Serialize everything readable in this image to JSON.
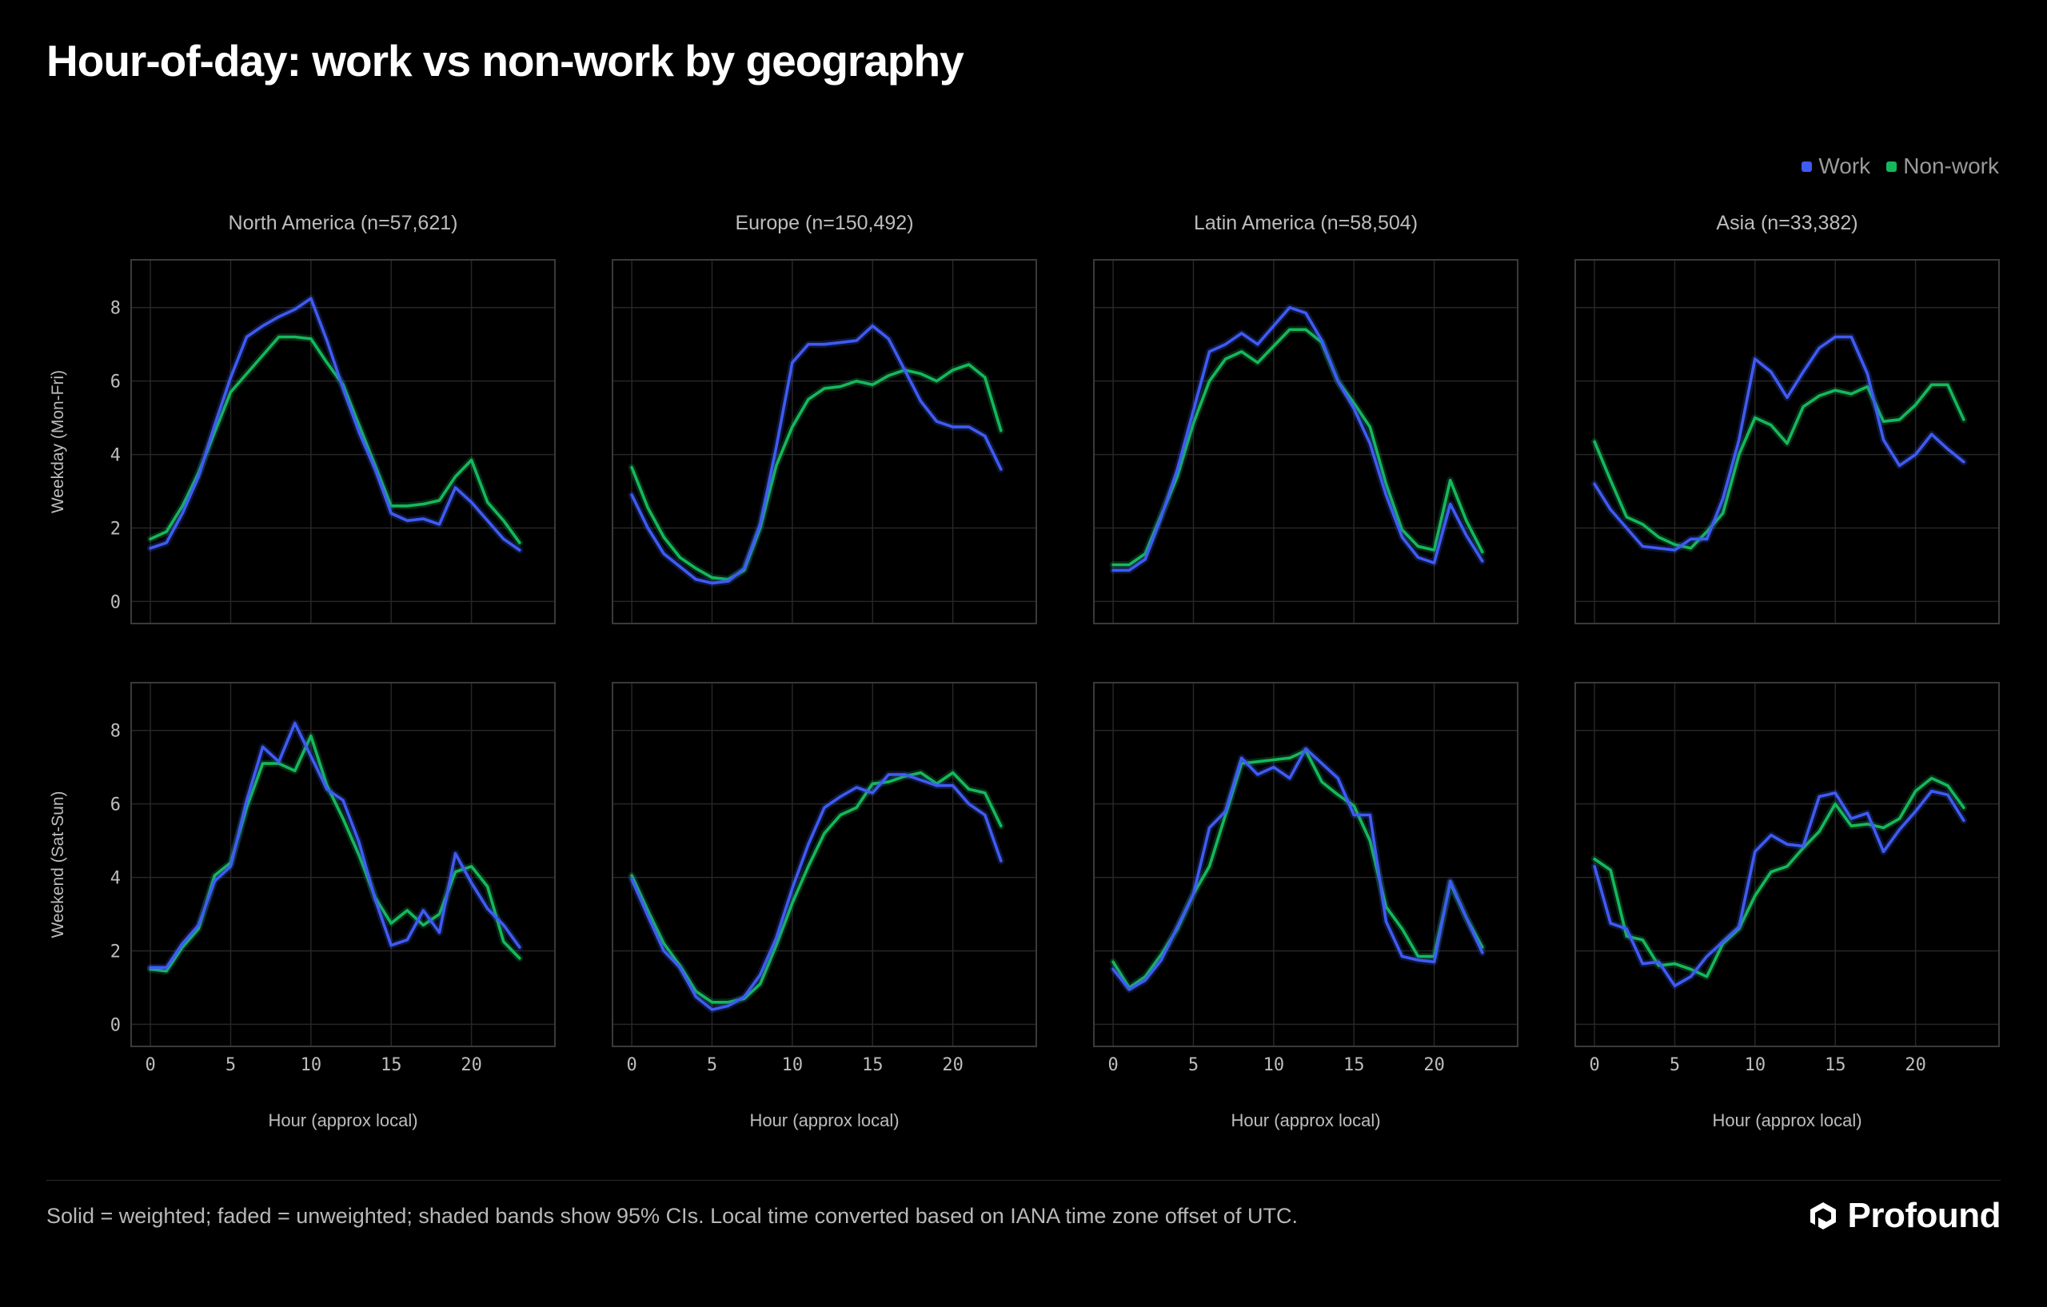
{
  "title": "Hour-of-day: work vs non-work by geography",
  "legend": {
    "items": [
      {
        "label": "Work",
        "color": "#3f5bf2"
      },
      {
        "label": "Non-work",
        "color": "#15b85c"
      }
    ]
  },
  "footer": {
    "note": "Solid = weighted; faded = unweighted; shaded bands show 95% CIs. Local time converted based on IANA time zone offset of UTC."
  },
  "brand": {
    "name": "Profound",
    "icon": "profound-logo-icon"
  },
  "colors": {
    "work": "#3f5bf2",
    "nonwork": "#15b85c",
    "grid": "#262626",
    "frame": "#3a3a3a"
  },
  "chart_data": {
    "type": "line",
    "layout": "facet-grid",
    "columns": [
      "North America (n=57,621)",
      "Europe (n=150,492)",
      "Latin America (n=58,504)",
      "Asia (n=33,382)"
    ],
    "rows": [
      "Weekday (Mon-Fri)",
      "Weekend (Sat-Sun)"
    ],
    "xlabel": "Hour (approx local)",
    "x": [
      0,
      1,
      2,
      3,
      4,
      5,
      6,
      7,
      8,
      9,
      10,
      11,
      12,
      13,
      14,
      15,
      16,
      17,
      18,
      19,
      20,
      21,
      22,
      23
    ],
    "xticks": [
      0,
      5,
      10,
      15,
      20
    ],
    "xlim": [
      -1.2,
      25.2
    ],
    "ylim": [
      -0.6,
      9.3
    ],
    "yticks": [
      0,
      2,
      4,
      6,
      8
    ],
    "grid": true,
    "legend_position": "top-right",
    "panels": [
      {
        "row": 0,
        "col": 0,
        "series": [
          {
            "name": "Work",
            "values": [
              1.45,
              1.6,
              2.4,
              3.4,
              4.8,
              6.1,
              7.2,
              7.5,
              7.75,
              7.95,
              8.25,
              7.1,
              5.8,
              4.6,
              3.6,
              2.4,
              2.2,
              2.25,
              2.1,
              3.1,
              2.7,
              2.2,
              1.7,
              1.4
            ]
          },
          {
            "name": "Non-work",
            "values": [
              1.7,
              1.9,
              2.6,
              3.5,
              4.6,
              5.7,
              6.2,
              6.7,
              7.2,
              7.2,
              7.15,
              6.5,
              5.9,
              4.8,
              3.7,
              2.6,
              2.6,
              2.65,
              2.75,
              3.4,
              3.85,
              2.7,
              2.2,
              1.6
            ]
          }
        ]
      },
      {
        "row": 0,
        "col": 1,
        "series": [
          {
            "name": "Work",
            "values": [
              2.9,
              2.0,
              1.3,
              0.95,
              0.6,
              0.5,
              0.55,
              0.9,
              2.1,
              4.2,
              6.5,
              7.0,
              7.0,
              7.05,
              7.1,
              7.5,
              7.15,
              6.3,
              5.45,
              4.9,
              4.75,
              4.75,
              4.5,
              3.6
            ]
          },
          {
            "name": "Non-work",
            "values": [
              3.65,
              2.55,
              1.75,
              1.2,
              0.9,
              0.65,
              0.6,
              0.85,
              2.0,
              3.7,
              4.75,
              5.5,
              5.8,
              5.85,
              6.0,
              5.9,
              6.15,
              6.3,
              6.2,
              6.0,
              6.3,
              6.45,
              6.1,
              4.65
            ]
          }
        ]
      },
      {
        "row": 0,
        "col": 2,
        "series": [
          {
            "name": "Work",
            "values": [
              0.85,
              0.85,
              1.15,
              2.3,
              3.6,
              5.2,
              6.8,
              7.0,
              7.3,
              7.0,
              7.5,
              8.0,
              7.85,
              7.1,
              6.0,
              5.25,
              4.3,
              2.9,
              1.75,
              1.2,
              1.05,
              2.65,
              1.8,
              1.1
            ]
          },
          {
            "name": "Non-work",
            "values": [
              1.0,
              1.0,
              1.3,
              2.35,
              3.4,
              4.85,
              6.0,
              6.6,
              6.8,
              6.5,
              6.95,
              7.4,
              7.4,
              7.05,
              6.0,
              5.4,
              4.75,
              3.2,
              1.95,
              1.5,
              1.4,
              3.3,
              2.2,
              1.35
            ]
          }
        ]
      },
      {
        "row": 0,
        "col": 3,
        "series": [
          {
            "name": "Work",
            "values": [
              3.2,
              2.5,
              2.0,
              1.5,
              1.45,
              1.4,
              1.7,
              1.7,
              2.8,
              4.4,
              6.6,
              6.25,
              5.55,
              6.25,
              6.9,
              7.2,
              7.2,
              6.2,
              4.4,
              3.7,
              4.0,
              4.55,
              4.15,
              3.8
            ]
          },
          {
            "name": "Non-work",
            "values": [
              4.35,
              3.3,
              2.3,
              2.1,
              1.75,
              1.55,
              1.45,
              1.9,
              2.4,
              4.0,
              5.0,
              4.8,
              4.3,
              5.3,
              5.6,
              5.75,
              5.65,
              5.85,
              4.9,
              4.95,
              5.35,
              5.9,
              5.9,
              4.95
            ]
          }
        ]
      },
      {
        "row": 1,
        "col": 0,
        "series": [
          {
            "name": "Work",
            "values": [
              1.55,
              1.55,
              2.2,
              2.7,
              3.9,
              4.3,
              6.1,
              7.55,
              7.15,
              8.2,
              7.3,
              6.4,
              6.1,
              4.95,
              3.4,
              2.15,
              2.3,
              3.1,
              2.5,
              4.65,
              3.85,
              3.15,
              2.7,
              2.1
            ]
          },
          {
            "name": "Non-work",
            "values": [
              1.5,
              1.45,
              2.1,
              2.6,
              4.05,
              4.4,
              5.9,
              7.1,
              7.1,
              6.9,
              7.85,
              6.5,
              5.6,
              4.6,
              3.45,
              2.75,
              3.1,
              2.7,
              3.0,
              4.15,
              4.3,
              3.75,
              2.25,
              1.8
            ]
          }
        ]
      },
      {
        "row": 1,
        "col": 1,
        "series": [
          {
            "name": "Work",
            "values": [
              3.95,
              2.95,
              2.0,
              1.55,
              0.75,
              0.4,
              0.5,
              0.75,
              1.35,
              2.35,
              3.7,
              4.9,
              5.9,
              6.2,
              6.45,
              6.3,
              6.8,
              6.8,
              6.65,
              6.5,
              6.5,
              6.0,
              5.7,
              4.45
            ]
          },
          {
            "name": "Non-work",
            "values": [
              4.05,
              3.1,
              2.2,
              1.6,
              0.9,
              0.6,
              0.6,
              0.7,
              1.1,
              2.15,
              3.3,
              4.3,
              5.2,
              5.7,
              5.9,
              6.55,
              6.6,
              6.75,
              6.85,
              6.55,
              6.85,
              6.4,
              6.3,
              5.4
            ]
          }
        ]
      },
      {
        "row": 1,
        "col": 2,
        "series": [
          {
            "name": "Work",
            "values": [
              1.5,
              0.95,
              1.2,
              1.75,
              2.65,
              3.55,
              5.35,
              5.8,
              7.25,
              6.8,
              7.0,
              6.7,
              7.5,
              7.1,
              6.7,
              5.7,
              5.7,
              2.8,
              1.85,
              1.75,
              1.7,
              3.9,
              2.9,
              1.95
            ]
          },
          {
            "name": "Non-work",
            "values": [
              1.7,
              1.0,
              1.3,
              1.9,
              2.6,
              3.55,
              4.3,
              5.7,
              7.1,
              7.15,
              7.2,
              7.25,
              7.45,
              6.6,
              6.25,
              5.95,
              5.0,
              3.2,
              2.6,
              1.85,
              1.85,
              3.85,
              2.9,
              2.1
            ]
          }
        ]
      },
      {
        "row": 1,
        "col": 3,
        "series": [
          {
            "name": "Work",
            "values": [
              4.3,
              2.75,
              2.6,
              1.65,
              1.7,
              1.05,
              1.3,
              1.85,
              2.25,
              2.65,
              4.7,
              5.15,
              4.9,
              4.85,
              6.2,
              6.3,
              5.6,
              5.75,
              4.7,
              5.3,
              5.8,
              6.35,
              6.25,
              5.55
            ]
          },
          {
            "name": "Non-work",
            "values": [
              4.5,
              4.2,
              2.4,
              2.3,
              1.6,
              1.65,
              1.5,
              1.3,
              2.2,
              2.6,
              3.5,
              4.15,
              4.3,
              4.8,
              5.25,
              6.0,
              5.4,
              5.45,
              5.35,
              5.6,
              6.35,
              6.7,
              6.5,
              5.9
            ]
          }
        ]
      }
    ]
  }
}
